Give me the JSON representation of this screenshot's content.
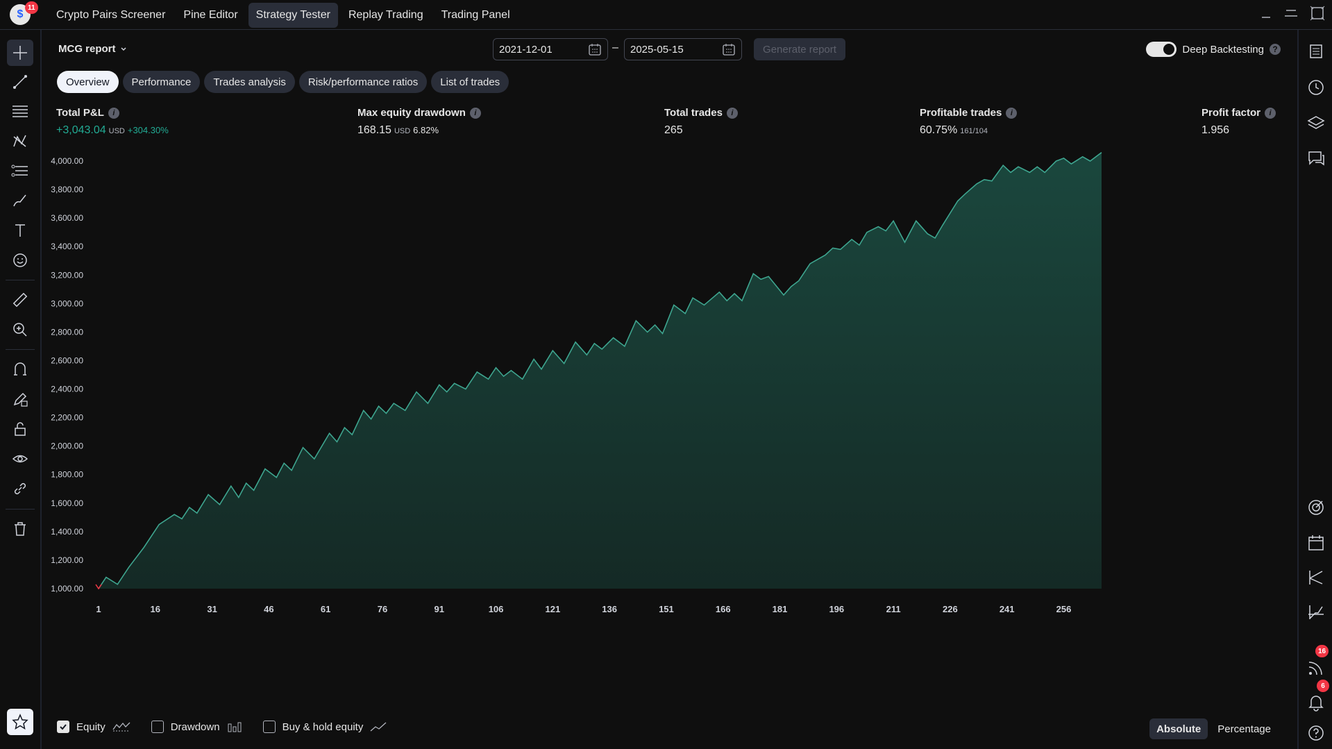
{
  "app": {
    "notification_count": "11",
    "top_tabs": [
      {
        "label": "Crypto Pairs Screener"
      },
      {
        "label": "Pine Editor"
      },
      {
        "label": "Strategy Tester"
      },
      {
        "label": "Replay Trading"
      },
      {
        "label": "Trading Panel"
      }
    ],
    "active_tab": "Strategy Tester"
  },
  "report": {
    "title": "MCG report",
    "date_from": "2021-12-01",
    "date_to": "2025-05-15",
    "date_separator": "–",
    "generate_label": "Generate report",
    "deep_backtesting_label": "Deep Backtesting",
    "deep_backtesting_on": true
  },
  "subtabs": [
    {
      "label": "Overview"
    },
    {
      "label": "Performance"
    },
    {
      "label": "Trades analysis"
    },
    {
      "label": "Risk/performance ratios"
    },
    {
      "label": "List of trades"
    }
  ],
  "metrics": {
    "total_pnl": {
      "label": "Total P&L",
      "value": "+3,043.04",
      "unit": "USD",
      "pct": "+304.30%"
    },
    "max_drawdown": {
      "label": "Max equity drawdown",
      "value": "168.15",
      "unit": "USD",
      "pct": "6.82%"
    },
    "total_trades": {
      "label": "Total trades",
      "value": "265"
    },
    "profitable_trades": {
      "label": "Profitable trades",
      "value": "60.75%",
      "detail": "161/104"
    },
    "profit_factor": {
      "label": "Profit factor",
      "value": "1.956"
    }
  },
  "legend": {
    "equity": "Equity",
    "drawdown": "Drawdown",
    "buy_hold": "Buy & hold equity",
    "absolute": "Absolute",
    "percentage": "Percentage"
  },
  "right_badges": {
    "feed": "16",
    "alerts": "6"
  },
  "colors": {
    "equity_line": "#3ea58f",
    "equity_fill": "#1b4a40",
    "profit": "#22ab94",
    "background": "#0f0f0f"
  },
  "chart_data": {
    "type": "area",
    "title": "",
    "xlabel": "",
    "ylabel": "",
    "x_ticks": [
      "1",
      "16",
      "31",
      "46",
      "61",
      "76",
      "91",
      "106",
      "121",
      "136",
      "151",
      "166",
      "181",
      "196",
      "211",
      "226",
      "241",
      "256"
    ],
    "y_ticks": [
      "1,000.00",
      "1,200.00",
      "1,400.00",
      "1,600.00",
      "1,800.00",
      "2,000.00",
      "2,200.00",
      "2,400.00",
      "2,600.00",
      "2,800.00",
      "3,000.00",
      "3,200.00",
      "3,400.00",
      "3,600.00",
      "3,800.00",
      "4,000.00"
    ],
    "xlim": [
      1,
      266
    ],
    "ylim": [
      1000,
      4000
    ],
    "series": [
      {
        "x": [
          1,
          3,
          6,
          9,
          13,
          17,
          21,
          23,
          25,
          27,
          30,
          33,
          36,
          38,
          40,
          42,
          45,
          48,
          50,
          52,
          55,
          58,
          62,
          64,
          66,
          68,
          71,
          73,
          75,
          77,
          79,
          82,
          85,
          88,
          91,
          93,
          95,
          98,
          101,
          104,
          106,
          108,
          110,
          113,
          116,
          118,
          121,
          124,
          127,
          130,
          132,
          134,
          137,
          140,
          143,
          146,
          148,
          150,
          153,
          156,
          158,
          161,
          165,
          167,
          169,
          171,
          174,
          176,
          178,
          182,
          184,
          186,
          189,
          193,
          195,
          197,
          200,
          202,
          204,
          207,
          209,
          211,
          214,
          217,
          220,
          222,
          224,
          228,
          230,
          233,
          235,
          237,
          240,
          242,
          244,
          247,
          249,
          251,
          254,
          256,
          258,
          261,
          263,
          266
        ],
        "y": [
          1000,
          1080,
          1030,
          1150,
          1290,
          1450,
          1520,
          1490,
          1570,
          1530,
          1660,
          1590,
          1720,
          1640,
          1740,
          1690,
          1840,
          1780,
          1880,
          1830,
          1990,
          1910,
          2090,
          2030,
          2130,
          2080,
          2250,
          2190,
          2280,
          2230,
          2300,
          2250,
          2380,
          2300,
          2430,
          2380,
          2440,
          2400,
          2520,
          2470,
          2550,
          2490,
          2530,
          2470,
          2610,
          2540,
          2670,
          2580,
          2730,
          2640,
          2720,
          2680,
          2760,
          2700,
          2880,
          2800,
          2850,
          2790,
          2990,
          2930,
          3040,
          2990,
          3080,
          3020,
          3070,
          3020,
          3210,
          3170,
          3190,
          3060,
          3120,
          3160,
          3280,
          3340,
          3390,
          3380,
          3450,
          3410,
          3500,
          3540,
          3510,
          3580,
          3430,
          3580,
          3490,
          3460,
          3550,
          3720,
          3770,
          3840,
          3870,
          3860,
          3970,
          3920,
          3960,
          3920,
          3960,
          3920,
          4000,
          4020,
          3980,
          4030,
          4000,
          4060
        ]
      }
    ]
  }
}
